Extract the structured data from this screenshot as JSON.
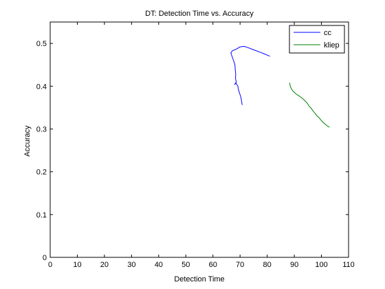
{
  "chart_data": {
    "type": "line",
    "title": "DT: Detection Time vs. Accuracy",
    "xlabel": "Detection Time",
    "ylabel": "Accuracy",
    "xlim": [
      0,
      110
    ],
    "ylim": [
      0,
      0.55
    ],
    "xticks": [
      0,
      10,
      20,
      30,
      40,
      50,
      60,
      70,
      80,
      90,
      100,
      110
    ],
    "yticks": [
      0,
      0.1,
      0.2,
      0.3,
      0.4,
      0.5
    ],
    "grid": false,
    "legend_position": "top-right",
    "series": [
      {
        "name": "cc",
        "color": "#0000ff",
        "x": [
          81.0,
          78.0,
          75.0,
          73.0,
          71.5,
          70.0,
          69.0,
          68.0,
          67.2,
          66.6,
          66.9,
          67.6,
          68.1,
          68.2,
          68.4,
          68.3,
          68.6,
          68.0,
          68.5,
          69.2,
          69.4,
          69.9,
          70.3,
          70.6,
          70.8
        ],
        "y": [
          0.47,
          0.478,
          0.485,
          0.49,
          0.493,
          0.492,
          0.488,
          0.485,
          0.483,
          0.478,
          0.472,
          0.46,
          0.45,
          0.44,
          0.428,
          0.418,
          0.41,
          0.404,
          0.407,
          0.4,
          0.392,
          0.382,
          0.374,
          0.364,
          0.356
        ]
      },
      {
        "name": "kliep",
        "color": "#007f00",
        "x": [
          88.3,
          88.5,
          88.9,
          89.6,
          90.6,
          91.8,
          92.9,
          93.9,
          94.8,
          95.5,
          96.3,
          96.9,
          97.6,
          98.3,
          99.2,
          99.9,
          100.7,
          101.4,
          102.2,
          103.0
        ],
        "y": [
          0.408,
          0.4,
          0.394,
          0.388,
          0.382,
          0.377,
          0.372,
          0.366,
          0.36,
          0.353,
          0.348,
          0.342,
          0.337,
          0.331,
          0.326,
          0.32,
          0.315,
          0.311,
          0.307,
          0.304
        ]
      }
    ]
  }
}
